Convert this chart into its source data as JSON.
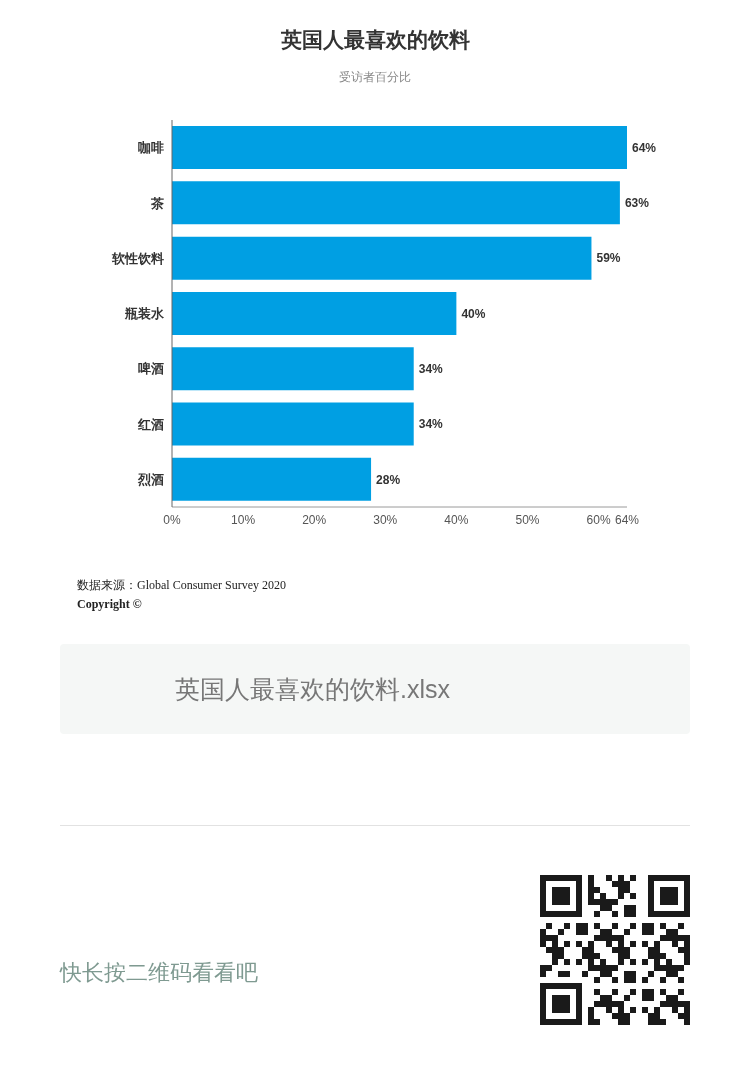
{
  "chart_data": {
    "type": "bar",
    "orientation": "horizontal",
    "title": "英国人最喜欢的饮料",
    "subtitle": "受访者百分比",
    "categories": [
      "咖啡",
      "茶",
      "软性饮料",
      "瓶装水",
      "啤酒",
      "红酒",
      "烈酒"
    ],
    "values": [
      64,
      63,
      59,
      40,
      34,
      34,
      28
    ],
    "color": "#009fe3",
    "value_labels": [
      "64%",
      "63%",
      "59%",
      "40%",
      "34%",
      "34%",
      "28%"
    ],
    "xlim": [
      0,
      64
    ],
    "xticks": [
      {
        "value": 0,
        "label": "0%"
      },
      {
        "value": 10,
        "label": "10%"
      },
      {
        "value": 20,
        "label": "20%"
      },
      {
        "value": 30,
        "label": "30%"
      },
      {
        "value": 40,
        "label": "40%"
      },
      {
        "value": 50,
        "label": "50%"
      },
      {
        "value": 60,
        "label": "60%"
      },
      {
        "value": 64,
        "label": "64%"
      }
    ],
    "annotations": [
      "数据来源：Global Consumer Survey 2020",
      "Copyright ©",
      "英国人最喜欢的饮料.xlsx",
      "快长按二维码看看吧"
    ]
  }
}
